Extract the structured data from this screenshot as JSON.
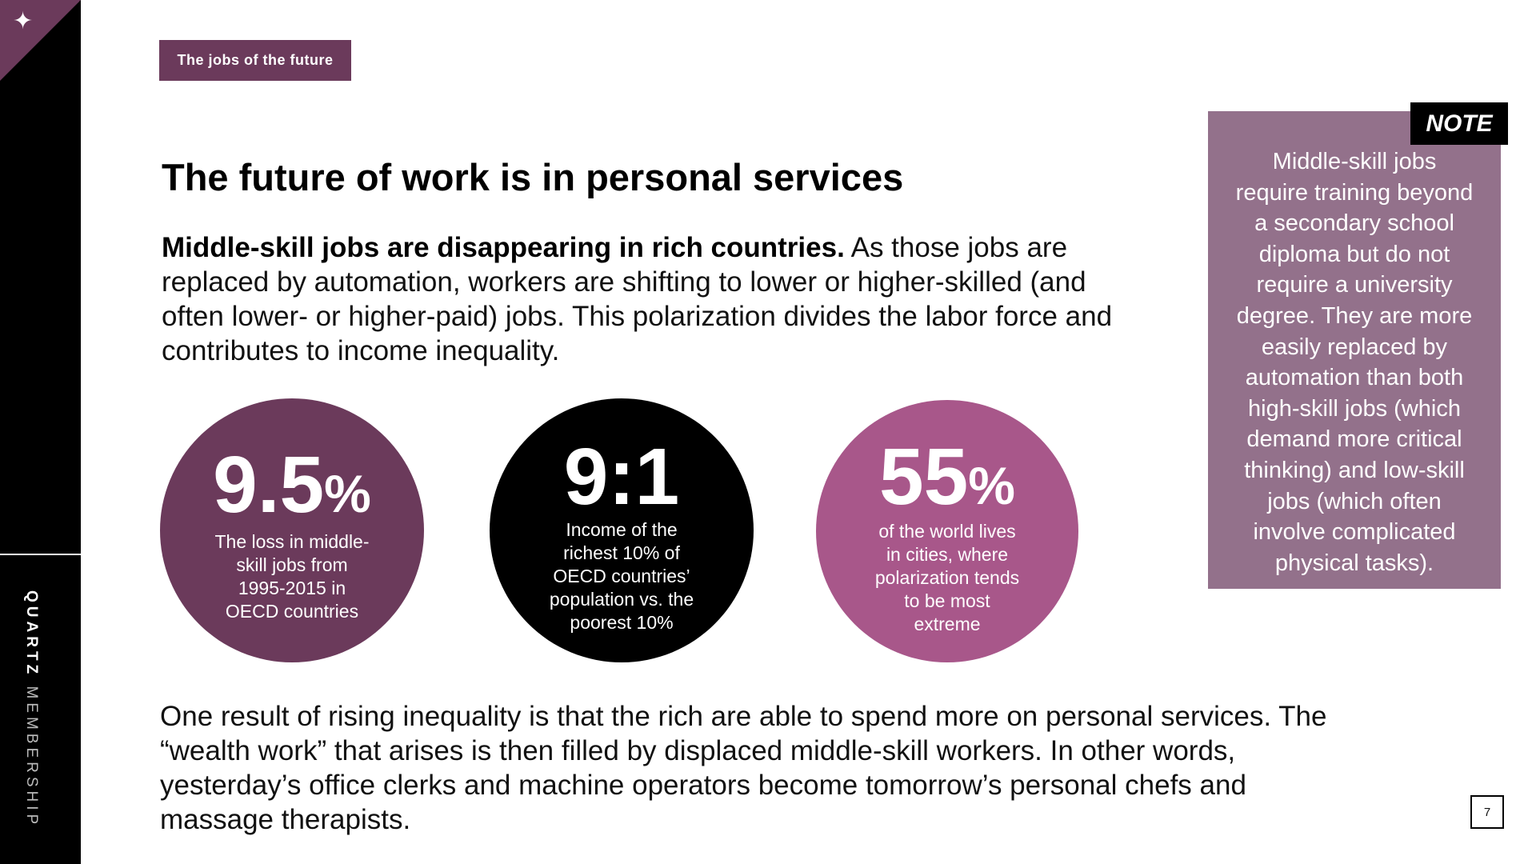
{
  "brand": {
    "bold": "QUARTZ",
    "light": "MEMBERSHIP"
  },
  "tag": "The jobs of the future",
  "title": "The future of work is in personal services",
  "intro": {
    "lead": "Middle-skill jobs are disappearing in rich countries.",
    "rest": " As those jobs are replaced by automation, workers are shifting to lower or higher-skilled (and often lower- or higher-paid) jobs. This polarization divides the labor force and contributes to income inequality."
  },
  "stats": [
    {
      "value": "9.5",
      "suffix": "%",
      "lines": [
        "The loss in middle-",
        "skill jobs from",
        "1995-2015 in",
        "OECD countries"
      ],
      "color": "#6b3a5b"
    },
    {
      "value": "9:1",
      "suffix": "",
      "lines": [
        "Income of the",
        "richest 10% of",
        "OECD countries’",
        "population vs. the",
        "poorest 10%"
      ],
      "color": "#000000"
    },
    {
      "value": "55",
      "suffix": "%",
      "lines": [
        "of the world lives",
        "in cities, where",
        "polarization tends",
        "to be most",
        "extreme"
      ],
      "color": "#a8578a"
    }
  ],
  "note": {
    "badge": "NOTE",
    "lines": [
      "Middle-skill jobs",
      "require training beyond",
      "a secondary school",
      "diploma but do not",
      "require a university",
      "degree. They are more",
      "easily replaced by",
      "automation than both",
      "high-skill jobs (which",
      "demand more critical",
      "thinking) and low-skill",
      "jobs (which often",
      "involve complicated",
      "physical tasks)."
    ]
  },
  "bottom": {
    "lines": [
      "One result of rising inequality is that the rich are able to spend more on personal services. The",
      "“wealth work” that arises is then filled by displaced middle-skill workers. In other words,",
      "yesterday’s office clerks and machine operators become tomorrow’s personal chefs and",
      "massage therapists."
    ]
  },
  "page_number": "7",
  "icons": {
    "corner": "sparkle-icon"
  }
}
